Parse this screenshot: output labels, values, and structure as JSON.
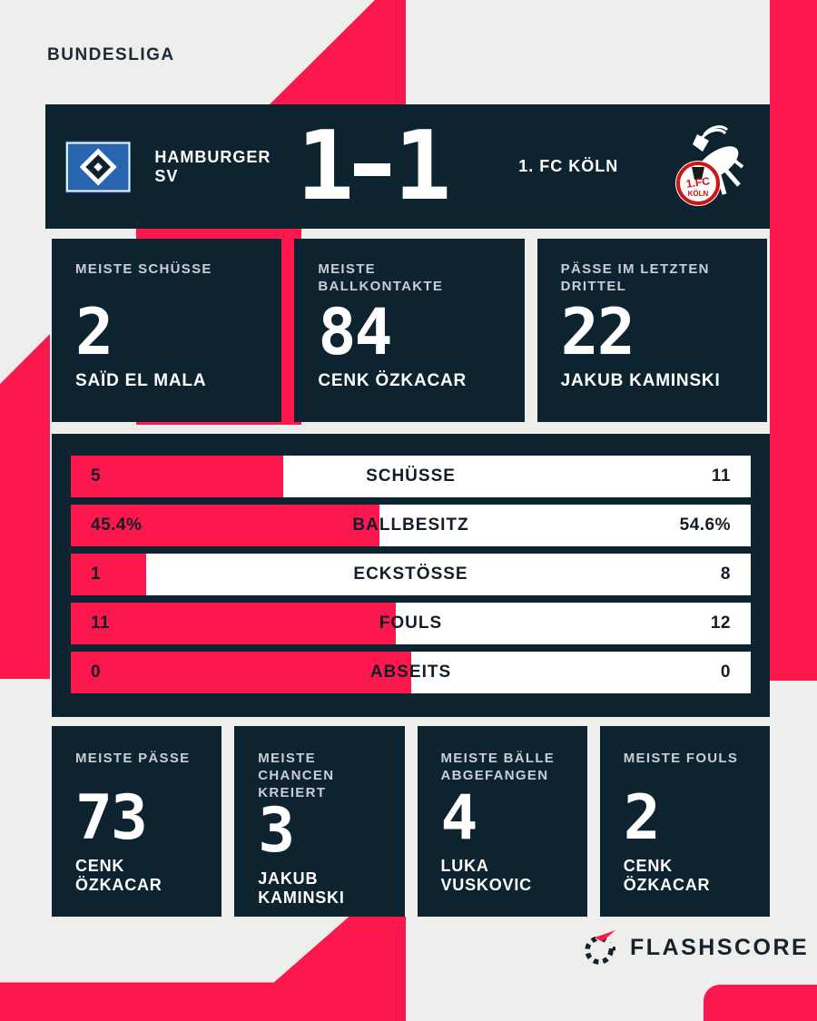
{
  "colors": {
    "accent_red": "#fc174d",
    "panel_navy": "#0e2330",
    "background_gray": "#eeeeec",
    "bar_white": "#ffffff"
  },
  "league": "BUNDESLIGA",
  "header": {
    "home_team": "HAMBURGER SV",
    "away_team": "1. FC KÖLN",
    "score_home": "1",
    "score_away": "1"
  },
  "top_stats": [
    {
      "label": "MEISTE SCHÜSSE",
      "value": "2",
      "player": "SAÏD EL MALA"
    },
    {
      "label": "MEISTE\nBALLKONTAKTE",
      "value": "84",
      "player": "CENK ÖZKACAR"
    },
    {
      "label": "PÄSSE IM LETZTEN\nDRITTEL",
      "value": "22",
      "player": "JAKUB KAMINSKI"
    }
  ],
  "bars": {
    "rows": [
      {
        "home": "5",
        "label": "SCHÜSSE",
        "away": "11",
        "home_pct": 31.25
      },
      {
        "home": "45.4%",
        "label": "BALLBESITZ",
        "away": "54.6%",
        "home_pct": 45.4
      },
      {
        "home": "1",
        "label": "ECKSTÖSSE",
        "away": "8",
        "home_pct": 11.1
      },
      {
        "home": "11",
        "label": "FOULS",
        "away": "12",
        "home_pct": 47.8
      },
      {
        "home": "0",
        "label": "ABSEITS",
        "away": "0",
        "home_pct": 50
      }
    ]
  },
  "bottom_stats": [
    {
      "label": "MEISTE PÄSSE",
      "value": "73",
      "player": "CENK ÖZKACAR"
    },
    {
      "label": "MEISTE CHANCEN\nKREIERT",
      "value": "3",
      "player": "JAKUB KAMINSKI"
    },
    {
      "label": "MEISTE BÄLLE\nABGEFANGEN",
      "value": "4",
      "player": "LUKA VUSKOVIC"
    },
    {
      "label": "MEISTE FOULS",
      "value": "2",
      "player": "CENK ÖZKACAR"
    }
  ],
  "footer": {
    "brand": "FLASHSCORE"
  }
}
